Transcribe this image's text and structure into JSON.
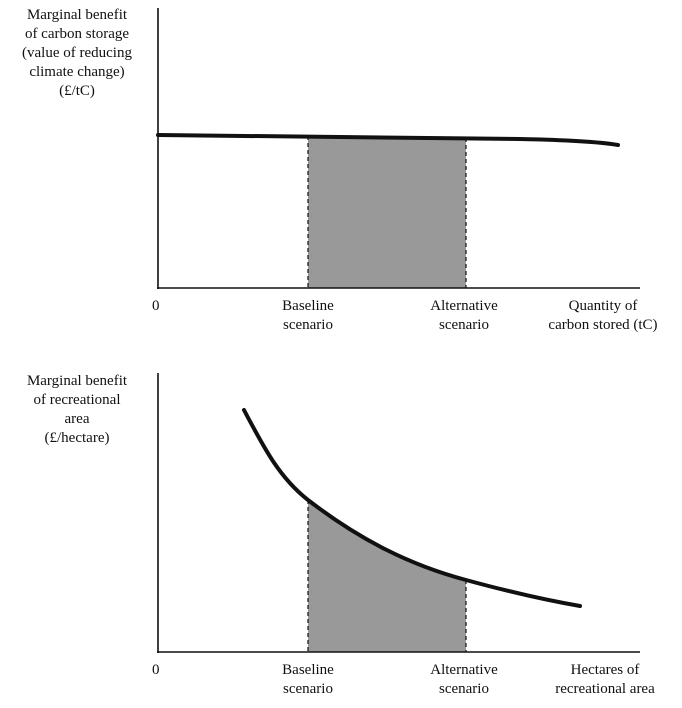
{
  "chart_data": [
    {
      "type": "line",
      "ylabel": "Marginal benefit\nof carbon storage\n(value of reducing\nclimate change)\n(£/tC)",
      "xlabel": "Quantity of\ncarbon stored (tC)",
      "x_ticks": [
        "0",
        "Baseline\nscenario",
        "Alternative\nscenario"
      ],
      "curve": "nearly flat, slightly declining",
      "shaded_region": {
        "from": "Baseline\nscenario",
        "to": "Alternative\nscenario",
        "color": "#999999"
      }
    },
    {
      "type": "line",
      "ylabel": "Marginal benefit\nof recreational\narea\n(£/hectare)",
      "xlabel": "Hectares of\nrecreational area",
      "x_ticks": [
        "0",
        "Baseline\nscenario",
        "Alternative\nscenario"
      ],
      "curve": "convex, steeply declining",
      "shaded_region": {
        "from": "Baseline\nscenario",
        "to": "Alternative\nscenario",
        "color": "#999999"
      }
    }
  ]
}
